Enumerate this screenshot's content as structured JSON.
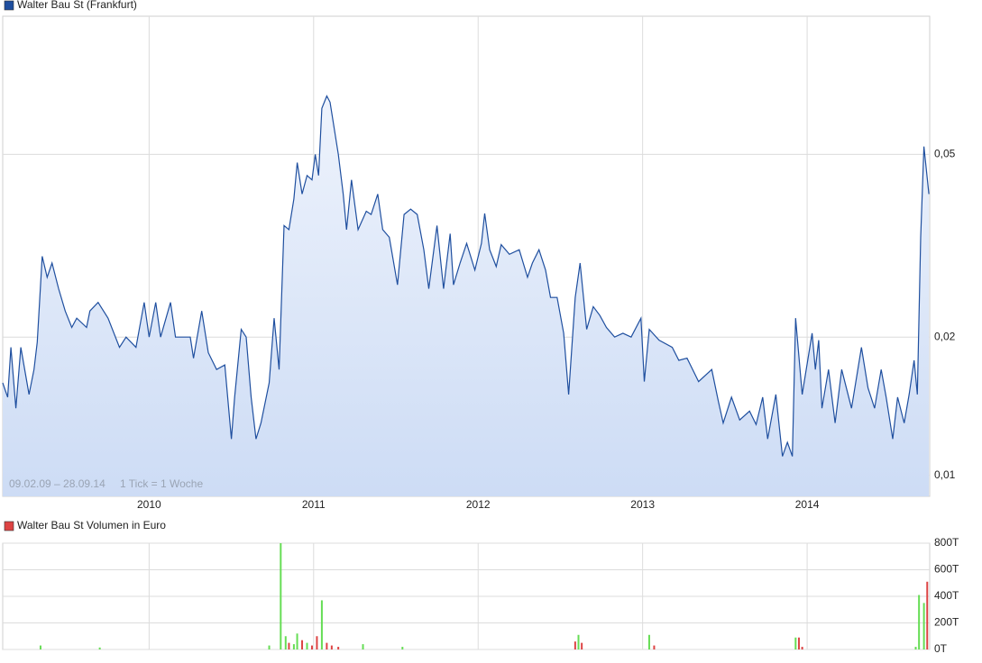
{
  "chart_data": [
    {
      "type": "area",
      "log_scale": true,
      "grid": true,
      "annotations": [
        "09.02.09 – 28.09.14",
        "1 Tick = 1 Woche"
      ],
      "xlim": [
        2009.11,
        2014.745
      ],
      "xticks": [
        2010,
        2011,
        2012,
        2013,
        2014
      ],
      "ylim": [
        0.009,
        0.1
      ],
      "yticks": [
        {
          "value": 0.01,
          "label": "0,01"
        },
        {
          "value": 0.02,
          "label": "0,02"
        },
        {
          "value": 0.05,
          "label": "0,05"
        }
      ],
      "series": [
        {
          "name": "Walter Bau St (Frankfurt)",
          "color": "#1f4f9f",
          "x": [
            2009.11,
            2009.14,
            2009.16,
            2009.19,
            2009.22,
            2009.27,
            2009.3,
            2009.32,
            2009.35,
            2009.38,
            2009.41,
            2009.45,
            2009.49,
            2009.53,
            2009.56,
            2009.62,
            2009.64,
            2009.69,
            2009.75,
            2009.82,
            2009.86,
            2009.92,
            2009.97,
            2010.0,
            2010.04,
            2010.07,
            2010.13,
            2010.16,
            2010.25,
            2010.27,
            2010.32,
            2010.36,
            2010.41,
            2010.46,
            2010.5,
            2010.52,
            2010.56,
            2010.59,
            2010.62,
            2010.65,
            2010.68,
            2010.73,
            2010.76,
            2010.79,
            2010.82,
            2010.85,
            2010.88,
            2010.9,
            2010.93,
            2010.96,
            2010.99,
            2011.01,
            2011.03,
            2011.05,
            2011.08,
            2011.1,
            2011.15,
            2011.18,
            2011.2,
            2011.23,
            2011.27,
            2011.32,
            2011.35,
            2011.39,
            2011.42,
            2011.46,
            2011.51,
            2011.55,
            2011.59,
            2011.63,
            2011.67,
            2011.7,
            2011.75,
            2011.79,
            2011.83,
            2011.85,
            2011.89,
            2011.93,
            2011.98,
            2012.02,
            2012.04,
            2012.07,
            2012.11,
            2012.14,
            2012.19,
            2012.25,
            2012.3,
            2012.33,
            2012.37,
            2012.41,
            2012.44,
            2012.48,
            2012.52,
            2012.55,
            2012.59,
            2012.62,
            2012.66,
            2012.7,
            2012.74,
            2012.78,
            2012.83,
            2012.88,
            2012.93,
            2012.99,
            2013.01,
            2013.04,
            2013.1,
            2013.18,
            2013.22,
            2013.27,
            2013.34,
            2013.42,
            2013.46,
            2013.49,
            2013.54,
            2013.59,
            2013.65,
            2013.69,
            2013.73,
            2013.76,
            2013.81,
            2013.85,
            2013.88,
            2013.91,
            2013.93,
            2013.97,
            2014.03,
            2014.05,
            2014.07,
            2014.09,
            2014.13,
            2014.17,
            2014.21,
            2014.27,
            2014.33,
            2014.37,
            2014.41,
            2014.45,
            2014.48,
            2014.52,
            2014.55,
            2014.59,
            2014.62,
            2014.65,
            2014.67,
            2014.69,
            2014.71,
            2014.74
          ],
          "values": [
            0.0159,
            0.0148,
            0.019,
            0.014,
            0.019,
            0.015,
            0.017,
            0.0195,
            0.03,
            0.027,
            0.029,
            0.0255,
            0.0228,
            0.021,
            0.022,
            0.021,
            0.0228,
            0.0238,
            0.022,
            0.019,
            0.02,
            0.019,
            0.0238,
            0.02,
            0.0238,
            0.02,
            0.0238,
            0.02,
            0.02,
            0.018,
            0.0228,
            0.0185,
            0.017,
            0.0174,
            0.012,
            0.0148,
            0.0208,
            0.02,
            0.0148,
            0.012,
            0.013,
            0.0159,
            0.022,
            0.017,
            0.035,
            0.0343,
            0.04,
            0.048,
            0.041,
            0.045,
            0.044,
            0.05,
            0.045,
            0.063,
            0.067,
            0.065,
            0.05,
            0.041,
            0.0343,
            0.044,
            0.0343,
            0.0376,
            0.037,
            0.041,
            0.0343,
            0.033,
            0.026,
            0.037,
            0.038,
            0.037,
            0.031,
            0.0255,
            0.035,
            0.0255,
            0.0336,
            0.026,
            0.029,
            0.032,
            0.028,
            0.032,
            0.0372,
            0.031,
            0.0285,
            0.0318,
            0.0303,
            0.031,
            0.027,
            0.029,
            0.031,
            0.028,
            0.0244,
            0.0244,
            0.0204,
            0.015,
            0.0244,
            0.029,
            0.0208,
            0.0233,
            0.0223,
            0.021,
            0.02,
            0.0204,
            0.02,
            0.022,
            0.016,
            0.0208,
            0.0197,
            0.019,
            0.0178,
            0.018,
            0.016,
            0.017,
            0.0145,
            0.013,
            0.0148,
            0.0132,
            0.0138,
            0.0129,
            0.0148,
            0.012,
            0.015,
            0.011,
            0.0118,
            0.011,
            0.022,
            0.015,
            0.0204,
            0.017,
            0.0197,
            0.014,
            0.017,
            0.013,
            0.017,
            0.014,
            0.019,
            0.0155,
            0.014,
            0.017,
            0.0148,
            0.012,
            0.0148,
            0.013,
            0.015,
            0.0178,
            0.015,
            0.033,
            0.052,
            0.041
          ]
        }
      ]
    },
    {
      "type": "bar",
      "grid": true,
      "xlim": [
        2009.11,
        2014.745
      ],
      "xticks": [
        2010,
        2011,
        2012,
        2013,
        2014
      ],
      "ylim": [
        0,
        800000
      ],
      "yticks": [
        {
          "value": 0,
          "label": "0T"
        },
        {
          "value": 200000,
          "label": "200T"
        },
        {
          "value": 400000,
          "label": "400T"
        },
        {
          "value": 600000,
          "label": "600T"
        },
        {
          "value": 800000,
          "label": "800T"
        }
      ],
      "series": [
        {
          "name": "Walter Bau St Volumen in Euro",
          "color": "#dd4444",
          "x": [
            2009.34,
            2009.7,
            2010.73,
            2010.8,
            2010.83,
            2010.85,
            2010.88,
            2010.9,
            2010.93,
            2010.96,
            2010.99,
            2011.02,
            2011.05,
            2011.08,
            2011.11,
            2011.15,
            2011.3,
            2011.54,
            2012.59,
            2012.61,
            2012.63,
            2013.04,
            2013.07,
            2013.93,
            2013.95,
            2013.97,
            2014.66,
            2014.68,
            2014.71,
            2014.73
          ],
          "values": [
            30000,
            15000,
            30000,
            800000,
            100000,
            50000,
            40000,
            120000,
            70000,
            50000,
            30000,
            100000,
            370000,
            50000,
            30000,
            20000,
            40000,
            20000,
            60000,
            110000,
            50000,
            110000,
            30000,
            90000,
            90000,
            20000,
            20000,
            410000,
            350000,
            510000
          ],
          "colors": [
            "#66dd55",
            "#66dd55",
            "#66dd55",
            "#66dd55",
            "#66dd55",
            "#dd4444",
            "#66dd55",
            "#66dd55",
            "#dd4444",
            "#66dd55",
            "#dd4444",
            "#dd4444",
            "#66dd55",
            "#dd4444",
            "#dd4444",
            "#dd4444",
            "#66dd55",
            "#66dd55",
            "#dd4444",
            "#66dd55",
            "#dd4444",
            "#66dd55",
            "#dd4444",
            "#66dd55",
            "#dd4444",
            "#dd4444",
            "#66dd55",
            "#66dd55",
            "#66dd55",
            "#dd4444"
          ]
        }
      ]
    }
  ]
}
